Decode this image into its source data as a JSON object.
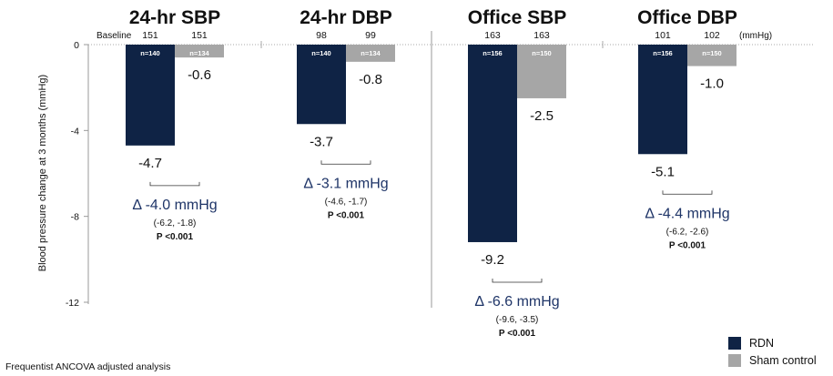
{
  "chart_data": {
    "type": "bar",
    "ylabel": "Blood pressure change at 3 months (mmHg)",
    "ylim": [
      -12,
      0
    ],
    "yticks": [
      "0",
      "-4",
      "-8",
      "-12"
    ],
    "baseline_label": "Baseline",
    "unit_label": "(mmHg)",
    "series": [
      {
        "name": "RDN",
        "color": "#0f2345"
      },
      {
        "name": "Sham control",
        "color": "#a6a6a6"
      }
    ],
    "groups": [
      {
        "title": "24-hr SBP",
        "baseline": [
          "151",
          "151"
        ],
        "n": [
          "n=140",
          "n=134"
        ],
        "values": [
          -4.7,
          -0.6
        ],
        "value_labels": [
          "-4.7",
          "-0.6"
        ],
        "delta": "Δ -4.0 mmHg",
        "ci": "(-6.2, -1.8)",
        "p": "P <0.001"
      },
      {
        "title": "24-hr DBP",
        "baseline": [
          "98",
          "99"
        ],
        "n": [
          "n=140",
          "n=134"
        ],
        "values": [
          -3.7,
          -0.8
        ],
        "value_labels": [
          "-3.7",
          "-0.8"
        ],
        "delta": "Δ -3.1 mmHg",
        "ci": "(-4.6, -1.7)",
        "p": "P <0.001"
      },
      {
        "title": "Office SBP",
        "baseline": [
          "163",
          "163"
        ],
        "n": [
          "n=156",
          "n=150"
        ],
        "values": [
          -9.2,
          -2.5
        ],
        "value_labels": [
          "-9.2",
          "-2.5"
        ],
        "delta": "Δ -6.6 mmHg",
        "ci": "(-9.6, -3.5)",
        "p": "P <0.001"
      },
      {
        "title": "Office DBP",
        "baseline": [
          "101",
          "102"
        ],
        "n": [
          "n=156",
          "n=150"
        ],
        "values": [
          -5.1,
          -1.0
        ],
        "value_labels": [
          "-5.1",
          "-1.0"
        ],
        "delta": "Δ -4.4 mmHg",
        "ci": "(-6.2, -2.6)",
        "p": "P <0.001"
      }
    ]
  },
  "footnote": "Frequentist ANCOVA adjusted analysis"
}
